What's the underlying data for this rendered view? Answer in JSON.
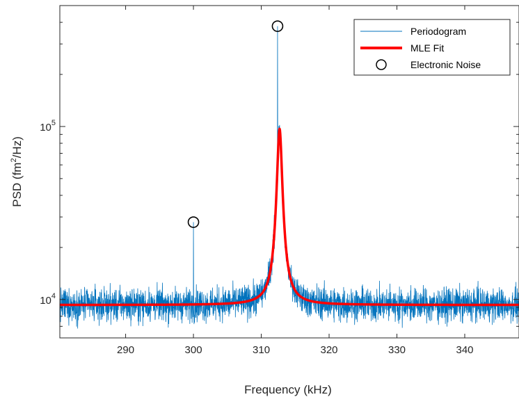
{
  "chart_data": {
    "type": "line",
    "title": "",
    "xlabel": "Frequency (kHz)",
    "ylabel": {
      "prefix": "PSD (fm",
      "sup": "2",
      "suffix": "/Hz)"
    },
    "xlim": [
      280.3,
      348.0
    ],
    "ylim": [
      6000,
      500000
    ],
    "yscale": "log",
    "grid": false,
    "legend_position": "top-right",
    "x_ticks": [
      {
        "value": 290,
        "label": "290"
      },
      {
        "value": 300,
        "label": "300"
      },
      {
        "value": 310,
        "label": "310"
      },
      {
        "value": 320,
        "label": "320"
      },
      {
        "value": 330,
        "label": "330"
      },
      {
        "value": 340,
        "label": "340"
      }
    ],
    "y_ticks": [
      {
        "value": 10000,
        "base": "10",
        "exp": "4"
      },
      {
        "value": 100000,
        "base": "10",
        "exp": "5"
      }
    ],
    "series": [
      {
        "name": "Periodogram",
        "kind": "noisy-line",
        "color": "#0072bd",
        "noise_floor": 9300,
        "noise_band": [
          6500,
          13500
        ],
        "spikes": [
          {
            "x": 300.0,
            "y": 28000
          },
          {
            "x": 312.4,
            "y": 380000
          },
          {
            "x": 312.7,
            "y": 102000
          }
        ]
      },
      {
        "name": "MLE Fit",
        "kind": "lorentzian",
        "color": "#ff0000",
        "floor": 9300,
        "peak": 97000,
        "center": 312.7,
        "half_width": 0.35
      },
      {
        "name": "Electronic Noise",
        "kind": "markers",
        "color": "#000000",
        "points": [
          {
            "x": 300.0,
            "y": 28000
          },
          {
            "x": 312.4,
            "y": 380000
          }
        ]
      }
    ]
  }
}
